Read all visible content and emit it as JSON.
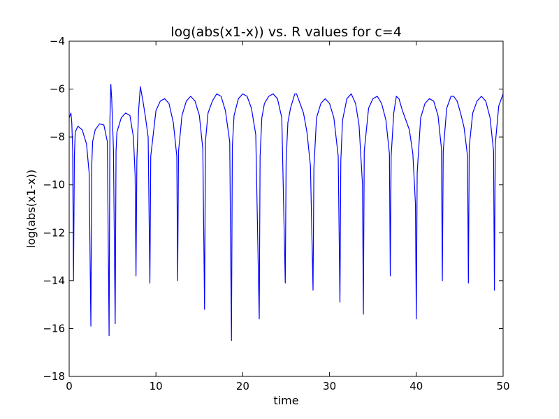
{
  "chart_data": {
    "type": "line",
    "title": "log(abs(x1-x)) vs. R values for c=4",
    "xlabel": "time",
    "ylabel": "log(abs(x1-x))",
    "xlim": [
      0,
      50
    ],
    "ylim": [
      -18,
      -4
    ],
    "xticks": [
      0,
      10,
      20,
      30,
      40,
      50
    ],
    "yticks": [
      -18,
      -16,
      -14,
      -12,
      -10,
      -8,
      -6,
      -4
    ],
    "xtick_labels": [
      "0",
      "10",
      "20",
      "30",
      "40",
      "50"
    ],
    "ytick_labels": [
      "−18",
      "−16",
      "−14",
      "−12",
      "−10",
      "−8",
      "−6",
      "−4"
    ],
    "grid": false,
    "series": [
      {
        "color": "#0000ff",
        "x": [
          0.0,
          0.2,
          0.3,
          0.4,
          0.5,
          0.6,
          0.7,
          1.0,
          1.5,
          2.0,
          2.3,
          2.5,
          2.6,
          2.7,
          3.0,
          3.5,
          4.0,
          4.4,
          4.6,
          4.7,
          4.8,
          4.9,
          5.1,
          5.3,
          5.4,
          5.5,
          6.0,
          6.5,
          7.0,
          7.4,
          7.6,
          7.7,
          7.8,
          8.0,
          8.2,
          8.5,
          8.8,
          9.1,
          9.3,
          9.4,
          10.0,
          10.5,
          11.0,
          11.5,
          12.0,
          12.4,
          12.5,
          12.6,
          13.0,
          13.5,
          14.0,
          14.5,
          15.0,
          15.4,
          15.6,
          15.7,
          16.0,
          16.5,
          17.0,
          17.5,
          18.0,
          18.5,
          18.7,
          18.8,
          19.0,
          19.5,
          20.0,
          20.5,
          21.0,
          21.5,
          21.9,
          22.0,
          22.2,
          22.5,
          23.0,
          23.5,
          24.0,
          24.5,
          24.9,
          25.0,
          25.2,
          25.5,
          26.0,
          26.2,
          26.6,
          27.0,
          27.4,
          27.8,
          28.1,
          28.2,
          28.5,
          29.0,
          29.5,
          30.0,
          30.5,
          31.0,
          31.2,
          31.3,
          31.5,
          32.0,
          32.5,
          33.0,
          33.4,
          33.8,
          33.9,
          34.0,
          34.5,
          35.0,
          35.5,
          36.0,
          36.5,
          36.9,
          37.0,
          37.1,
          37.4,
          37.7,
          38.0,
          38.4,
          38.8,
          39.2,
          39.6,
          39.9,
          40.0,
          40.1,
          40.5,
          41.0,
          41.5,
          42.0,
          42.5,
          42.9,
          43.0,
          43.1,
          43.5,
          44.0,
          44.3,
          44.7,
          45.1,
          45.5,
          45.9,
          46.0,
          46.1,
          46.5,
          47.0,
          47.5,
          48.0,
          48.5,
          48.9,
          49.0,
          49.1,
          49.5,
          50.0
        ],
        "y": [
          -7.2,
          -7.0,
          -7.4,
          -8.5,
          -14.0,
          -8.8,
          -7.8,
          -7.55,
          -7.7,
          -8.3,
          -9.5,
          -15.9,
          -9.2,
          -8.2,
          -7.7,
          -7.45,
          -7.5,
          -8.2,
          -16.3,
          -7.2,
          -5.8,
          -6.4,
          -8.5,
          -15.8,
          -8.6,
          -7.8,
          -7.2,
          -7.0,
          -7.1,
          -8.0,
          -9.6,
          -13.8,
          -9.0,
          -6.9,
          -5.9,
          -6.5,
          -7.2,
          -8.0,
          -14.1,
          -8.8,
          -6.9,
          -6.5,
          -6.4,
          -6.6,
          -7.4,
          -8.8,
          -14.0,
          -8.6,
          -7.1,
          -6.5,
          -6.3,
          -6.5,
          -7.1,
          -8.5,
          -15.2,
          -8.2,
          -7.0,
          -6.5,
          -6.2,
          -6.3,
          -6.9,
          -8.2,
          -16.5,
          -8.4,
          -7.1,
          -6.4,
          -6.2,
          -6.3,
          -6.8,
          -7.9,
          -15.6,
          -8.8,
          -7.2,
          -6.6,
          -6.3,
          -6.2,
          -6.4,
          -7.2,
          -14.1,
          -9.0,
          -7.4,
          -6.8,
          -6.2,
          -6.2,
          -6.6,
          -7.0,
          -7.8,
          -9.2,
          -14.4,
          -9.3,
          -7.2,
          -6.6,
          -6.4,
          -6.6,
          -7.2,
          -8.8,
          -14.9,
          -9.0,
          -7.3,
          -6.4,
          -6.2,
          -6.6,
          -7.5,
          -10.0,
          -15.4,
          -8.6,
          -6.8,
          -6.4,
          -6.3,
          -6.6,
          -7.3,
          -8.7,
          -13.8,
          -8.8,
          -7.0,
          -6.3,
          -6.4,
          -6.9,
          -7.3,
          -7.7,
          -8.7,
          -10.8,
          -15.6,
          -9.5,
          -7.2,
          -6.6,
          -6.4,
          -6.5,
          -7.1,
          -8.5,
          -14.0,
          -8.6,
          -6.8,
          -6.3,
          -6.3,
          -6.5,
          -7.0,
          -7.6,
          -8.8,
          -14.1,
          -8.4,
          -7.0,
          -6.5,
          -6.3,
          -6.5,
          -7.2,
          -8.6,
          -14.4,
          -8.3,
          -6.7,
          -6.2
        ]
      }
    ]
  }
}
